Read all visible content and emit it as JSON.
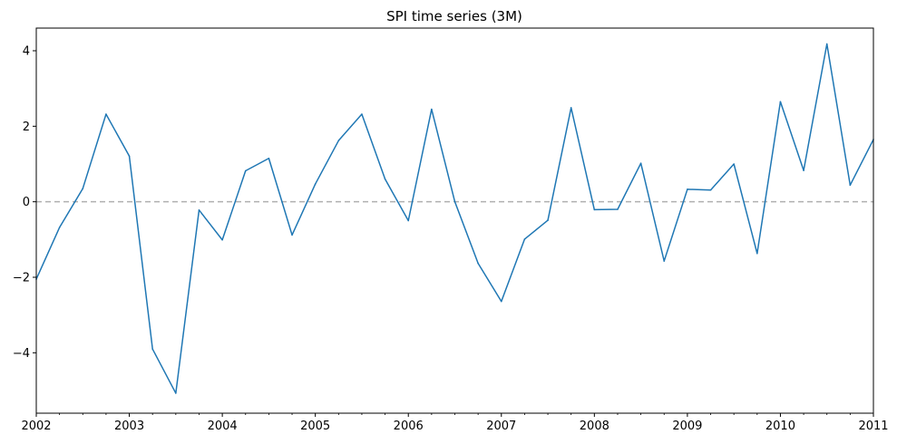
{
  "chart_data": {
    "type": "line",
    "title": "SPI time series (3M)",
    "xlabel": "",
    "ylabel": "",
    "xlim": [
      "2002-01",
      "2011-01"
    ],
    "ylim": [
      -5.6,
      4.6
    ],
    "x_tick_labels": [
      "2002",
      "2003",
      "2004",
      "2005",
      "2006",
      "2007",
      "2008",
      "2009",
      "2010",
      "2011"
    ],
    "y_ticks": [
      -4,
      -2,
      0,
      2,
      4
    ],
    "y_tick_labels": [
      "−4",
      "−2",
      "0",
      "2",
      "4"
    ],
    "reference_line": {
      "y": 0,
      "style": "dashed",
      "color": "#b0b0b0"
    },
    "grid": false,
    "series": [
      {
        "color": "#1f77b4",
        "x": [
          "2002-01",
          "2002-04",
          "2002-07",
          "2002-10",
          "2003-01",
          "2003-04",
          "2003-07",
          "2003-10",
          "2004-01",
          "2004-04",
          "2004-07",
          "2004-10",
          "2005-01",
          "2005-04",
          "2005-07",
          "2005-10",
          "2006-01",
          "2006-04",
          "2006-07",
          "2006-10",
          "2007-01",
          "2007-04",
          "2007-07",
          "2007-10",
          "2008-01",
          "2008-04",
          "2008-07",
          "2008-10",
          "2009-01",
          "2009-04",
          "2009-07",
          "2009-10",
          "2010-01",
          "2010-04",
          "2010-07",
          "2010-10",
          "2011-01"
        ],
        "values": [
          -2.05,
          -0.68,
          0.35,
          2.32,
          1.21,
          -3.9,
          -5.07,
          -0.22,
          -1.01,
          0.82,
          1.15,
          -0.88,
          0.47,
          1.62,
          2.32,
          0.6,
          -0.5,
          2.45,
          0.0,
          -1.63,
          -2.64,
          -0.99,
          -0.49,
          2.49,
          -0.21,
          -0.2,
          1.02,
          -1.57,
          0.33,
          0.31,
          1.0,
          -1.37,
          2.65,
          0.83,
          4.18,
          0.44,
          1.65
        ]
      }
    ]
  }
}
